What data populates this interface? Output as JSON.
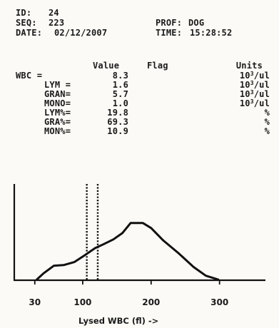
{
  "header": {
    "id_label": "ID:",
    "id_value": "24",
    "seq_label": "SEQ:",
    "seq_value": "223",
    "prof_label": "PROF:",
    "prof_value": "DOG",
    "date_label": "DATE:",
    "date_value": "02/12/2007",
    "time_label": "TIME:",
    "time_value": "15:28:52"
  },
  "table": {
    "col_value": "Value",
    "col_flag": "Flag",
    "col_units": "Units",
    "rows": [
      {
        "label": "WBC =",
        "value": "8.3",
        "unit_base": "10",
        "unit_exp": "3",
        "unit_tail": "/ul"
      },
      {
        "label": "LYM =",
        "value": "1.6",
        "unit_base": "10",
        "unit_exp": "3",
        "unit_tail": "/ul"
      },
      {
        "label": "GRAN=",
        "value": "5.7",
        "unit_base": "10",
        "unit_exp": "3",
        "unit_tail": "/ul"
      },
      {
        "label": "MONO=",
        "value": "1.0",
        "unit_base": "10",
        "unit_exp": "3",
        "unit_tail": "/ul"
      },
      {
        "label": "LYM%=",
        "value": "19.8",
        "unit_pct": "%"
      },
      {
        "label": "GRA%=",
        "value": "69.3",
        "unit_pct": "%"
      },
      {
        "label": "MON%=",
        "value": "10.9",
        "unit_pct": "%"
      }
    ]
  },
  "chart_data": {
    "type": "line",
    "xlabel": "Lysed WBC (fl) ->",
    "ylabel": "",
    "xlim": [
      0,
      365
    ],
    "ylim": [
      0,
      1
    ],
    "xticks": [
      "30",
      "100",
      "200",
      "300"
    ],
    "xtick_values": [
      30,
      100,
      200,
      300
    ],
    "series": [
      {
        "x": [
          33,
          43,
          58,
          72,
          88,
          102,
          118,
          130,
          145,
          158,
          170,
          188,
          200,
          218,
          240,
          262,
          280,
          298
        ],
        "y": [
          0.0,
          0.1,
          0.22,
          0.23,
          0.28,
          0.38,
          0.5,
          0.56,
          0.64,
          0.74,
          0.9,
          0.9,
          0.82,
          0.62,
          0.42,
          0.2,
          0.06,
          0.0
        ]
      }
    ],
    "markers": [
      {
        "x": 106,
        "style": "dotted"
      },
      {
        "x": 122,
        "style": "dotted"
      }
    ]
  }
}
